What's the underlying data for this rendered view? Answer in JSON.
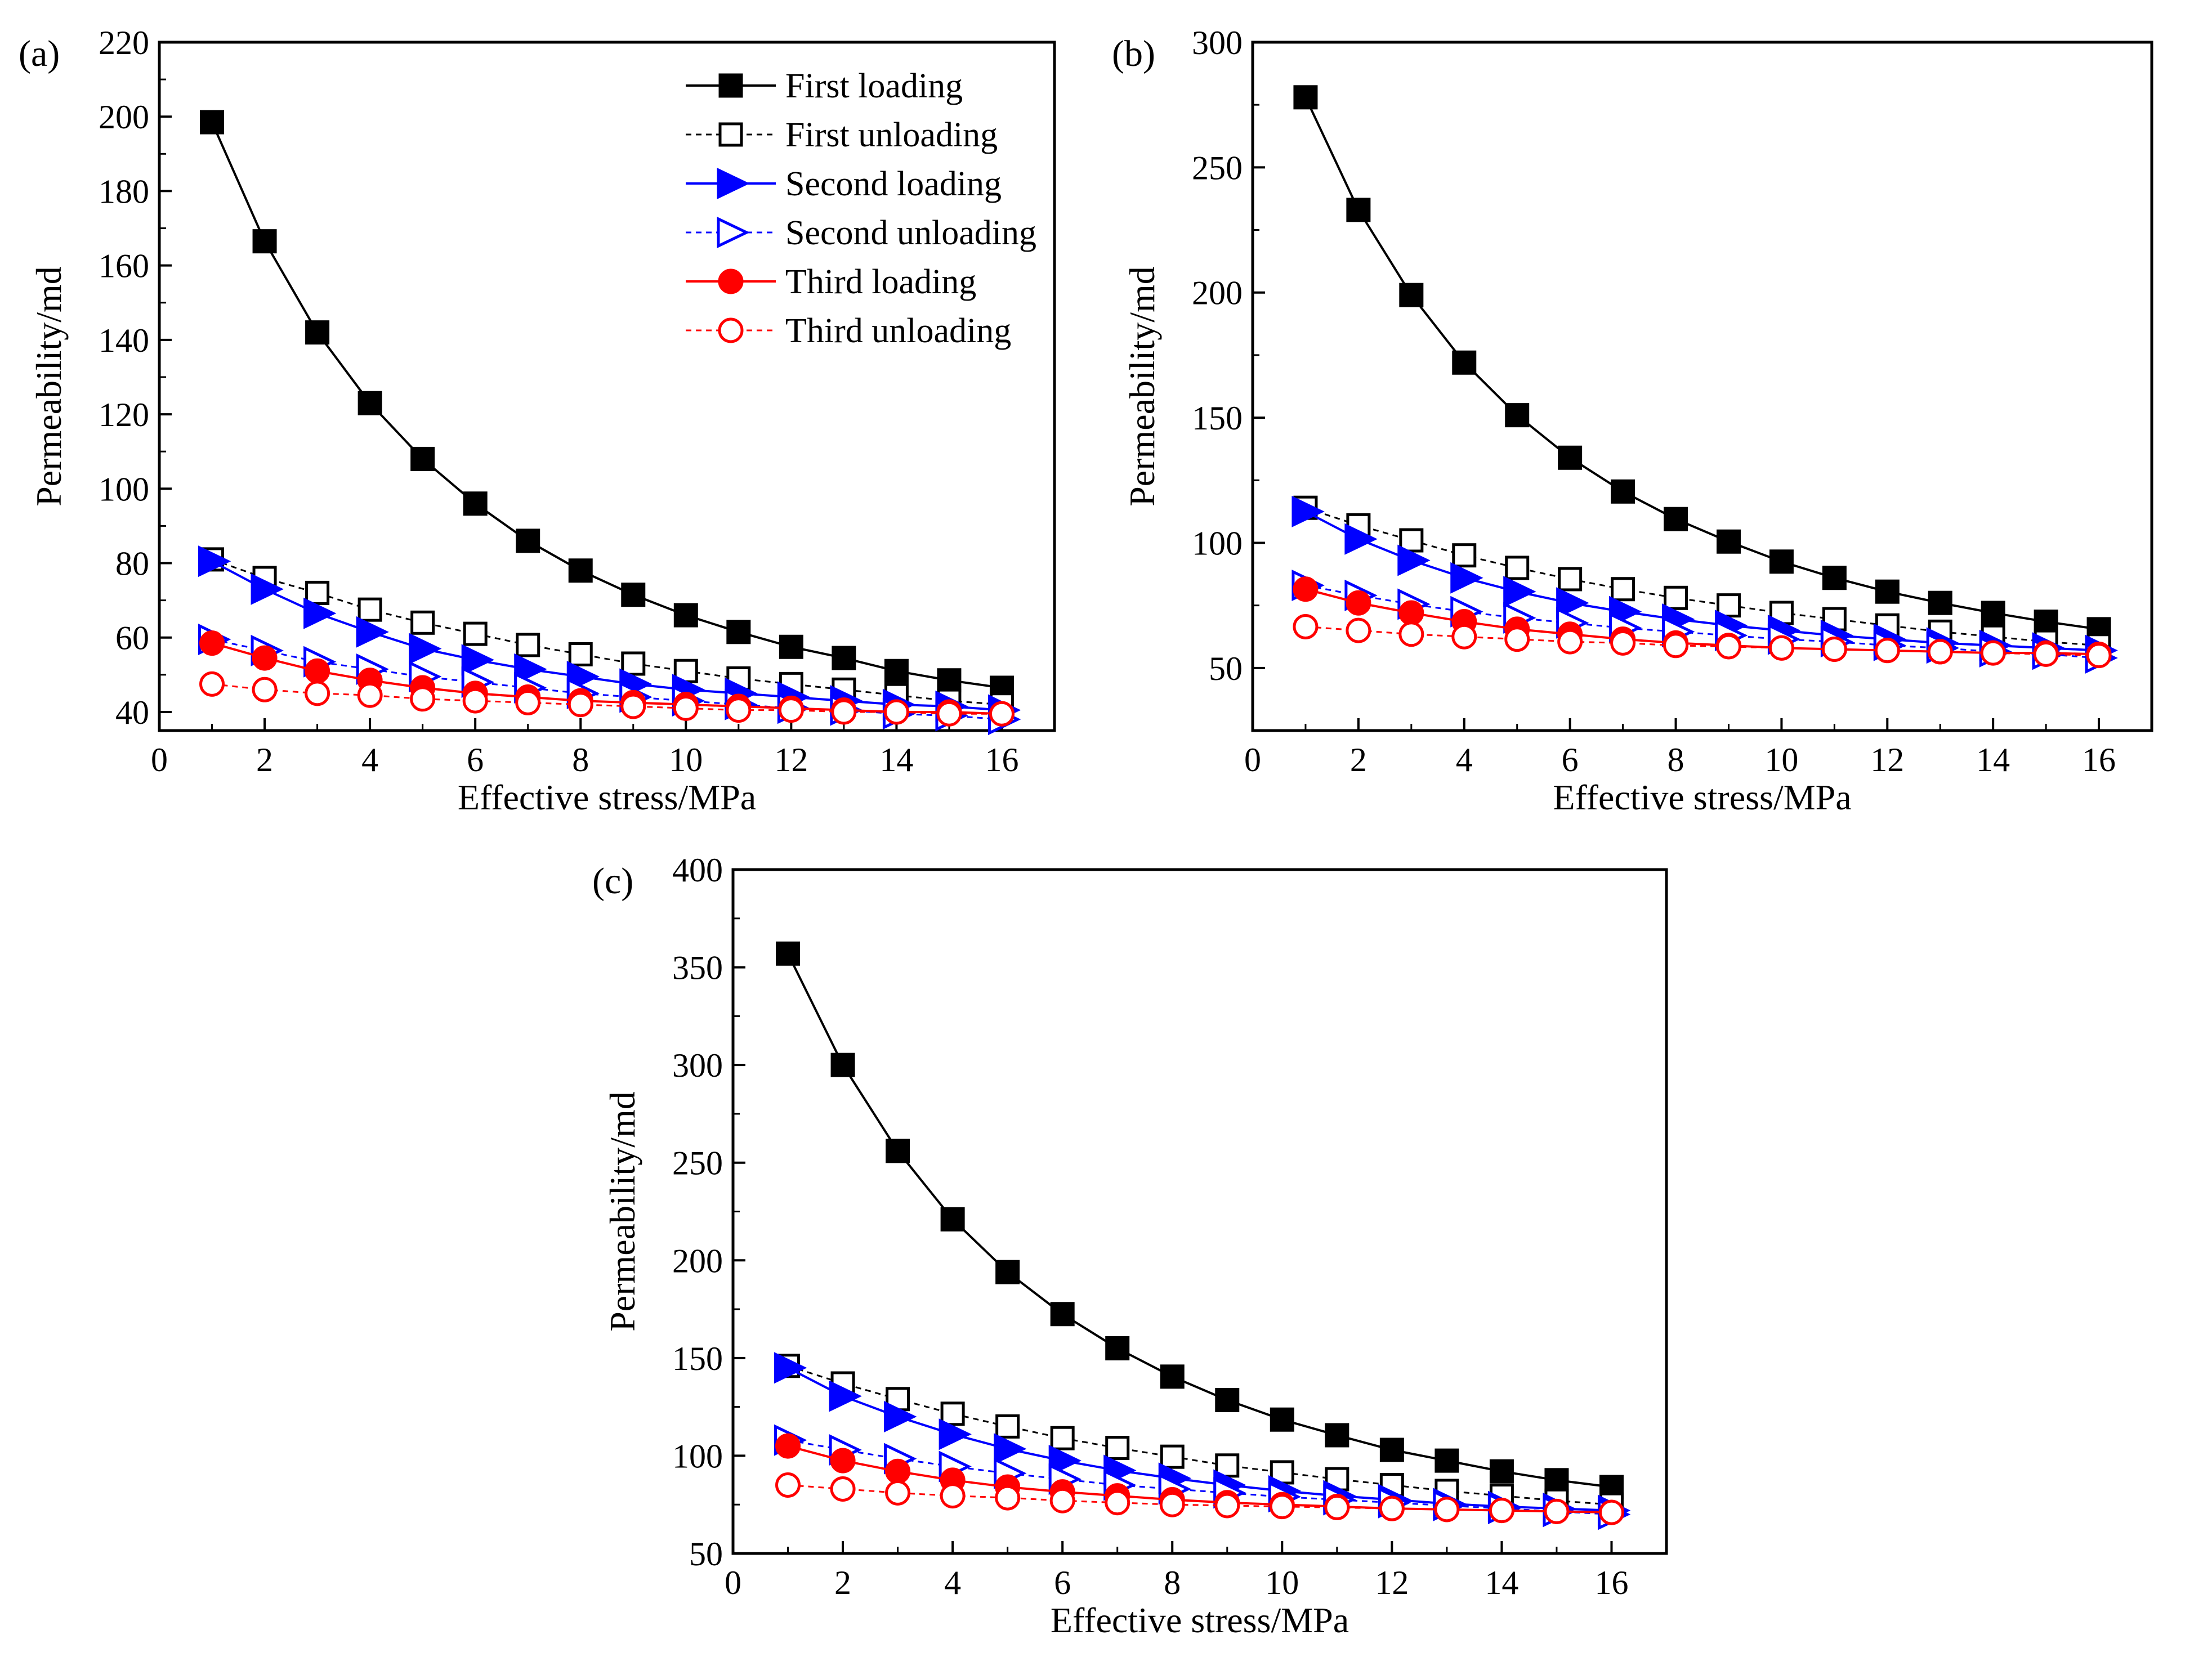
{
  "chart_data": [
    {
      "type": "line",
      "panel_label": "(a)",
      "xlabel": "Effective stress/MPa",
      "ylabel": "Permeability/md",
      "xlim": [
        0,
        17
      ],
      "ylim": [
        35,
        220
      ],
      "xticks": [
        0,
        2,
        4,
        6,
        8,
        10,
        12,
        14,
        16
      ],
      "yticks": [
        40,
        60,
        80,
        100,
        120,
        140,
        160,
        180,
        200,
        220
      ],
      "legend_position": "top-right",
      "x": [
        1,
        2,
        3,
        4,
        5,
        6,
        7,
        8,
        9,
        10,
        11,
        12,
        13,
        14,
        15,
        16
      ],
      "series": [
        {
          "name": "First loading",
          "values": [
            198.5,
            166.5,
            142,
            123,
            108,
            96,
            86,
            78,
            71.5,
            66,
            61.5,
            57.5,
            54.5,
            51,
            48.5,
            46.5
          ]
        },
        {
          "name": "First unloading",
          "values": [
            81,
            76,
            72,
            67.5,
            64,
            61,
            58,
            55.5,
            53,
            51,
            49,
            47.5,
            46,
            44.5,
            43,
            42
          ]
        },
        {
          "name": "Second loading",
          "values": [
            80.5,
            73,
            66.5,
            61.5,
            57,
            54,
            51.5,
            49.5,
            47.5,
            46,
            45,
            44,
            43,
            42,
            41.5,
            40.5
          ]
        },
        {
          "name": "Second unloading",
          "values": [
            59.5,
            56.5,
            53.5,
            51.5,
            49.5,
            48,
            46.5,
            45,
            44,
            43,
            42,
            41,
            40.5,
            39.5,
            39,
            38
          ]
        },
        {
          "name": "Third loading",
          "values": [
            58.5,
            54.5,
            51,
            48.5,
            46.5,
            45,
            44,
            43,
            42.5,
            42,
            41.5,
            41,
            40.5,
            40,
            40,
            39.5
          ]
        },
        {
          "name": "Third unloading",
          "values": [
            47.5,
            46,
            45,
            44.5,
            43.5,
            43,
            42.5,
            42,
            41.5,
            41,
            40.5,
            40.5,
            40,
            40,
            39.5,
            39.5
          ]
        }
      ]
    },
    {
      "type": "line",
      "panel_label": "(b)",
      "xlabel": "Effective stress/MPa",
      "ylabel": "Permeability/md",
      "xlim": [
        0,
        17
      ],
      "ylim": [
        25,
        300
      ],
      "xticks": [
        0,
        2,
        4,
        6,
        8,
        10,
        12,
        14,
        16
      ],
      "yticks": [
        50,
        100,
        150,
        200,
        250,
        300
      ],
      "x": [
        1,
        2,
        3,
        4,
        5,
        6,
        7,
        8,
        9,
        10,
        11,
        12,
        13,
        14,
        15,
        16
      ],
      "series": [
        {
          "name": "First loading",
          "values": [
            278,
            233,
            199,
            172,
            151,
            134,
            120.5,
            109.5,
            100.5,
            92.5,
            86,
            80.5,
            76,
            72,
            68.5,
            65.5
          ]
        },
        {
          "name": "First unloading",
          "values": [
            114,
            107,
            101,
            95,
            90,
            85.5,
            81.5,
            78,
            75,
            72,
            69.5,
            67,
            64.5,
            62.5,
            60.5,
            59
          ]
        },
        {
          "name": "Second loading",
          "values": [
            112.5,
            101.5,
            93,
            86,
            80.5,
            76,
            72.5,
            69.5,
            67,
            65,
            63,
            61.5,
            60,
            59,
            58,
            57
          ]
        },
        {
          "name": "Second unloading",
          "values": [
            83,
            79,
            75.5,
            72.5,
            70,
            68,
            66,
            64.5,
            63,
            61.5,
            60.5,
            59,
            58,
            56.5,
            55.5,
            54
          ]
        },
        {
          "name": "Third loading",
          "values": [
            81.5,
            76,
            72,
            68.5,
            65.5,
            63.5,
            61.5,
            60,
            59,
            58,
            57.5,
            57,
            56.5,
            56,
            56,
            55.5
          ]
        },
        {
          "name": "Third unloading",
          "values": [
            66.5,
            65,
            63.5,
            62.5,
            61.5,
            60.5,
            60,
            59,
            58.5,
            58,
            57.5,
            57,
            56.5,
            56,
            55.5,
            55
          ]
        }
      ]
    },
    {
      "type": "line",
      "panel_label": "(c)",
      "xlabel": "Effective stress/MPa",
      "ylabel": "Permeability/md",
      "xlim": [
        0,
        17
      ],
      "ylim": [
        50,
        400
      ],
      "xticks": [
        0,
        2,
        4,
        6,
        8,
        10,
        12,
        14,
        16
      ],
      "yticks": [
        50,
        100,
        150,
        200,
        250,
        300,
        350,
        400
      ],
      "x": [
        1,
        2,
        3,
        4,
        5,
        6,
        7,
        8,
        9,
        10,
        11,
        12,
        13,
        14,
        15,
        16
      ],
      "series": [
        {
          "name": "First loading",
          "values": [
            357,
            300,
            256,
            221,
            194,
            172.5,
            155,
            140.5,
            128.5,
            118.5,
            110.5,
            103,
            97.5,
            92,
            87.5,
            84
          ]
        },
        {
          "name": "First unloading",
          "values": [
            146,
            137,
            129,
            121.5,
            115,
            109,
            104,
            99.5,
            95,
            91.5,
            88,
            85,
            82,
            79.5,
            77,
            75
          ]
        },
        {
          "name": "Second loading",
          "values": [
            145,
            130.5,
            120,
            111,
            103.5,
            97.5,
            92.5,
            88.5,
            85,
            82,
            79.5,
            77.5,
            75.5,
            74,
            73,
            72
          ]
        },
        {
          "name": "Second unloading",
          "values": [
            108,
            103,
            98.5,
            94.5,
            91,
            88,
            85,
            83,
            81,
            79,
            77.5,
            76,
            74.5,
            73,
            71.5,
            70
          ]
        },
        {
          "name": "Third loading",
          "values": [
            105,
            97.5,
            92,
            87.5,
            84,
            81.5,
            79.5,
            77.5,
            76,
            75,
            74,
            73,
            72.5,
            72,
            71.5,
            71
          ]
        },
        {
          "name": "Third unloading",
          "values": [
            85,
            83,
            81,
            79.5,
            78.5,
            77,
            76,
            75,
            74.5,
            74,
            73.5,
            73,
            72.5,
            72,
            71.5,
            71
          ]
        }
      ]
    }
  ],
  "legend": {
    "entries": [
      "First loading",
      "First unloading",
      "Second loading",
      "Second unloading",
      "Third loading",
      "Third unloading"
    ]
  },
  "styles": {
    "First loading": {
      "color": "#000000",
      "marker": "square",
      "filled": true,
      "dashed": false
    },
    "First unloading": {
      "color": "#000000",
      "marker": "square",
      "filled": false,
      "dashed": true
    },
    "Second loading": {
      "color": "#0000ff",
      "marker": "triangle-right",
      "filled": true,
      "dashed": false
    },
    "Second unloading": {
      "color": "#0000ff",
      "marker": "triangle-right",
      "filled": false,
      "dashed": true
    },
    "Third loading": {
      "color": "#ff0000",
      "marker": "circle",
      "filled": true,
      "dashed": false
    },
    "Third unloading": {
      "color": "#ff0000",
      "marker": "circle",
      "filled": false,
      "dashed": true
    }
  }
}
